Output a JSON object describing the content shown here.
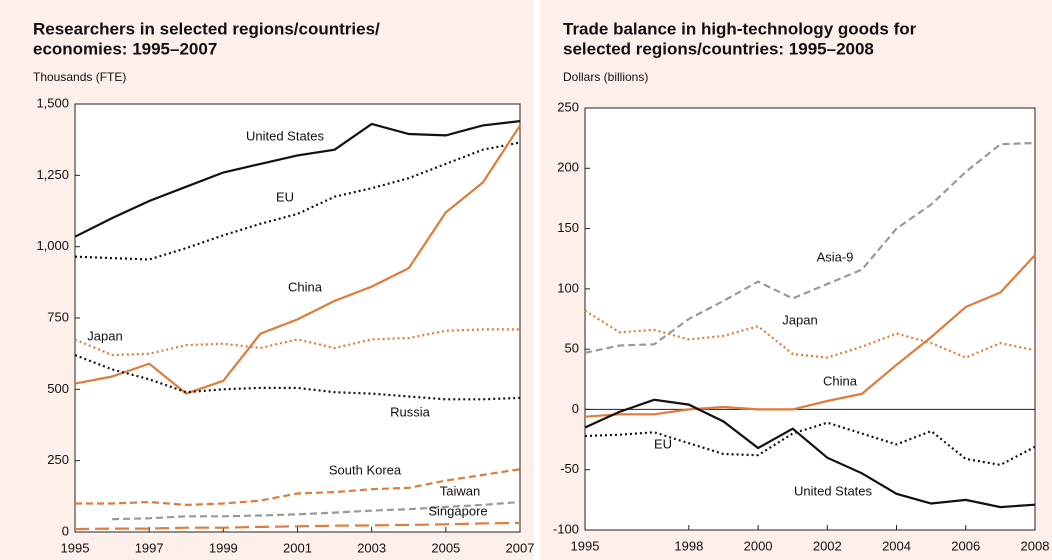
{
  "chart_data": [
    {
      "type": "line",
      "title": [
        "Researchers in selected regions/countries/",
        "economies: 1995–2007"
      ],
      "subtitle": "Thousands (FTE)",
      "x": [
        1995,
        1996,
        1997,
        1998,
        1999,
        2000,
        2001,
        2002,
        2003,
        2004,
        2005,
        2006,
        2007
      ],
      "xlim": [
        1995,
        2007
      ],
      "xticks": [
        1995,
        1997,
        1999,
        2001,
        2003,
        2005,
        2007
      ],
      "ylim": [
        0,
        1500
      ],
      "yticks": [
        0,
        250,
        500,
        750,
        {
          "value": 1000,
          "label": "1,000"
        },
        {
          "value": 1250,
          "label": "1,250"
        },
        {
          "value": 1500,
          "label": "1,500"
        }
      ],
      "series": [
        {
          "name": "United States",
          "color": "#111111",
          "style": "solid",
          "values": [
            1035,
            1100,
            1160,
            1210,
            1260,
            1290,
            1320,
            1340,
            1430,
            1395,
            1390,
            1425,
            1440
          ]
        },
        {
          "name": "EU",
          "color": "#111111",
          "style": "dotted",
          "values": [
            965,
            960,
            955,
            995,
            1040,
            1080,
            1115,
            1175,
            1205,
            1240,
            1290,
            1340,
            1365
          ]
        },
        {
          "name": "China",
          "color": "#e07b39",
          "style": "solid",
          "values": [
            520,
            545,
            590,
            485,
            530,
            695,
            745,
            810,
            860,
            925,
            1120,
            1225,
            1425
          ]
        },
        {
          "name": "Japan",
          "color": "#e07b39",
          "style": "dotted",
          "values": [
            675,
            620,
            625,
            655,
            660,
            645,
            675,
            645,
            675,
            680,
            705,
            710,
            710
          ]
        },
        {
          "name": "Russia",
          "color": "#111111",
          "style": "dotted",
          "values": [
            620,
            570,
            535,
            490,
            500,
            505,
            505,
            490,
            485,
            475,
            465,
            465,
            470
          ]
        },
        {
          "name": "South Korea",
          "color": "#e07b39",
          "style": "dashed",
          "values": [
            100,
            100,
            105,
            95,
            100,
            110,
            135,
            140,
            150,
            155,
            180,
            200,
            220
          ]
        },
        {
          "name": "Taiwan",
          "color": "#999999",
          "style": "dashed",
          "values": [
            null,
            45,
            48,
            55,
            55,
            58,
            62,
            68,
            75,
            80,
            88,
            95,
            105
          ]
        },
        {
          "name": "Singapore",
          "color": "#e07b39",
          "style": "longdash",
          "values": [
            10,
            12,
            12,
            15,
            15,
            18,
            20,
            22,
            23,
            25,
            27,
            30,
            32
          ]
        }
      ]
    },
    {
      "type": "line",
      "title": [
        "Trade balance in high-technology goods for",
        "selected regions/countries: 1995–2008"
      ],
      "subtitle": "Dollars (billions)",
      "x": [
        1995,
        1996,
        1997,
        1998,
        1999,
        2000,
        2001,
        2002,
        2003,
        2004,
        2005,
        2006,
        2007,
        2008
      ],
      "xlim": [
        1995,
        2008
      ],
      "xticks": [
        1995,
        1998,
        2000,
        2002,
        2004,
        2006,
        2008
      ],
      "ylim": [
        -100,
        250
      ],
      "yticks": [
        -100,
        -50,
        0,
        50,
        100,
        150,
        200,
        250
      ],
      "zero_line": true,
      "series": [
        {
          "name": "Asia-9",
          "color": "#999999",
          "style": "dashed",
          "values": [
            47,
            53,
            54,
            75,
            90,
            106,
            92,
            104,
            116,
            150,
            170,
            197,
            220,
            221
          ]
        },
        {
          "name": "Japan",
          "color": "#e07b39",
          "style": "dotted",
          "values": [
            82,
            64,
            66,
            58,
            61,
            69,
            46,
            43,
            52,
            63,
            55,
            43,
            55,
            49
          ]
        },
        {
          "name": "China",
          "color": "#e07b39",
          "style": "solid",
          "values": [
            -6,
            -4,
            -4,
            0,
            2,
            0,
            0,
            7,
            13,
            37,
            60,
            85,
            97,
            128
          ]
        },
        {
          "name": "EU",
          "color": "#111111",
          "style": "dotted",
          "values": [
            -22,
            -21,
            -19,
            -28,
            -37,
            -38,
            -20,
            -11,
            -20,
            -29,
            -18,
            -41,
            -46,
            -31
          ]
        },
        {
          "name": "United States",
          "color": "#111111",
          "style": "solid",
          "values": [
            -15,
            -2,
            8,
            4,
            -10,
            -32,
            -16,
            -40,
            -53,
            -70,
            -78,
            -75,
            -81,
            -79
          ]
        }
      ]
    }
  ]
}
